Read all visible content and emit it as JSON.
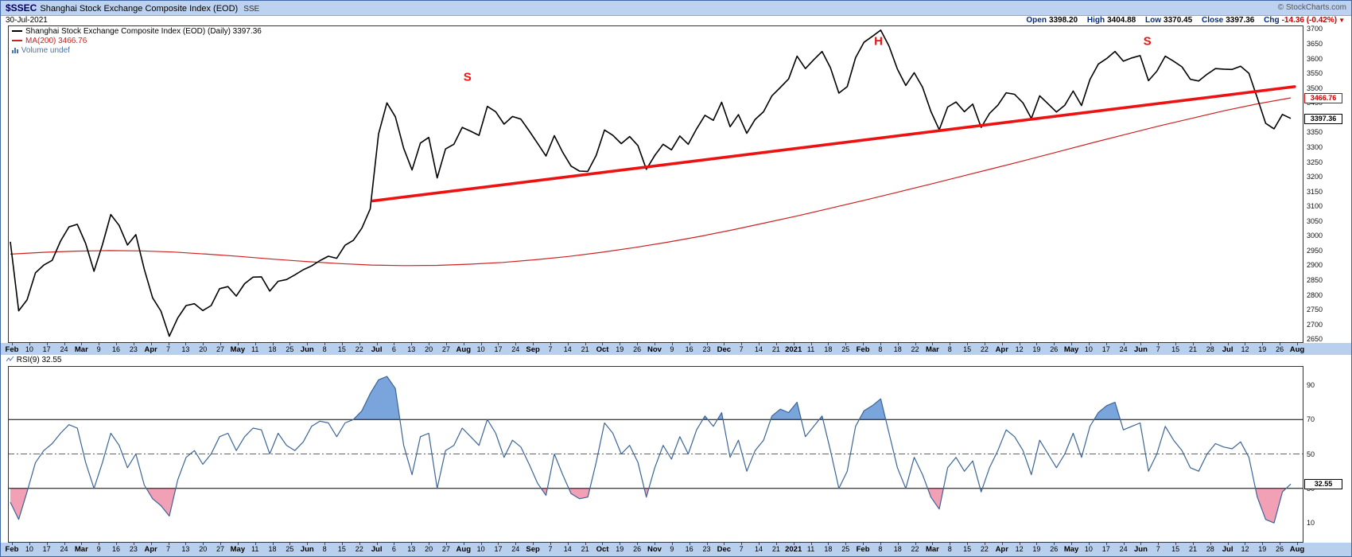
{
  "header": {
    "symbol": "$SSEC",
    "title": "Shanghai Stock Exchange Composite Index (EOD)",
    "exchange": "SSE",
    "copyright": "© StockCharts.com",
    "date": "30-Jul-2021",
    "quote": {
      "items": [
        {
          "label": "Open",
          "value": "3398.20"
        },
        {
          "label": "High",
          "value": "3404.88"
        },
        {
          "label": "Low",
          "value": "3370.45"
        },
        {
          "label": "Close",
          "value": "3397.36"
        },
        {
          "label": "Chg",
          "value": "-14.36 (-0.42%)"
        }
      ],
      "down_arrow": "▼"
    }
  },
  "legend": {
    "index_line": "Shanghai Stock Exchange Composite Index (EOD) (Daily) 3397.36",
    "ma_line": "MA(200) 3466.76",
    "volume": "Volume undef"
  },
  "rsi_legend": {
    "label": "RSI(9) 32.55"
  },
  "colors": {
    "header_bg": "#bdd2f0",
    "strip_bg": "#b9cfee",
    "price_line": "#000000",
    "ma_line": "#cc2222",
    "trendline": "#ee1111",
    "rsi_line": "#3b6596",
    "rsi_fill_high": "#7aa5dc",
    "rsi_fill_low": "#f2a0b5",
    "tag_red": "#cc0000",
    "annotation_red": "#ee1111",
    "negative": "#cc0000"
  },
  "chart_data": [
    {
      "type": "line",
      "panel": "price",
      "title": "Shanghai Stock Exchange Composite Index (EOD) (Daily)",
      "last_value": 3397.36,
      "ylim": [
        2650,
        3700
      ],
      "y_ticks": [
        3700,
        3650,
        3600,
        3550,
        3500,
        3450,
        3400,
        3350,
        3300,
        3250,
        3200,
        3150,
        3100,
        3050,
        3000,
        2950,
        2900,
        2850,
        2800,
        2750,
        2700,
        2650
      ],
      "x_range": [
        "Feb-2020",
        "Aug-2021"
      ],
      "series": [
        {
          "name": "SSEC Close",
          "color": "#000000",
          "values": [
            2980,
            2746,
            2783,
            2875,
            2901,
            2917,
            2982,
            3030,
            3039,
            2974,
            2880,
            2970,
            3072,
            3035,
            2969,
            3004,
            2887,
            2790,
            2745,
            2660,
            2722,
            2764,
            2770,
            2747,
            2764,
            2821,
            2828,
            2796,
            2838,
            2860,
            2861,
            2813,
            2846,
            2852,
            2868,
            2885,
            2898,
            2916,
            2931,
            2924,
            2968,
            2985,
            3026,
            3091,
            3345,
            3450,
            3403,
            3296,
            3223,
            3314,
            3333,
            3196,
            3294,
            3310,
            3367,
            3354,
            3340,
            3438,
            3420,
            3378,
            3404,
            3395,
            3355,
            3313,
            3270,
            3339,
            3283,
            3236,
            3219,
            3218,
            3272,
            3358,
            3340,
            3312,
            3336,
            3305,
            3225,
            3272,
            3310,
            3291,
            3338,
            3310,
            3362,
            3408,
            3391,
            3452,
            3369,
            3410,
            3347,
            3394,
            3420,
            3474,
            3502,
            3531,
            3608,
            3566,
            3596,
            3624,
            3569,
            3483,
            3505,
            3603,
            3655,
            3675,
            3696,
            3642,
            3564,
            3509,
            3552,
            3503,
            3421,
            3359,
            3436,
            3453,
            3420,
            3446,
            3367,
            3414,
            3442,
            3484,
            3479,
            3450,
            3397,
            3474,
            3447,
            3419,
            3442,
            3490,
            3441,
            3529,
            3581,
            3600,
            3624,
            3591,
            3602,
            3610,
            3525,
            3557,
            3608,
            3591,
            3572,
            3530,
            3524,
            3547,
            3566,
            3564,
            3563,
            3574,
            3550,
            3467,
            3381,
            3362,
            3411,
            3397.36
          ]
        },
        {
          "name": "MA(200)",
          "color": "#cc2222",
          "last_value": 3466.76,
          "values": [
            2938,
            2944,
            2948,
            2950,
            2949,
            2945,
            2938,
            2930,
            2921,
            2913,
            2906,
            2901,
            2899,
            2900,
            2904,
            2910,
            2919,
            2930,
            2944,
            2960,
            2978,
            2998,
            3020,
            3044,
            3068,
            3094,
            3120,
            3147,
            3174,
            3202,
            3230,
            3258,
            3287,
            3316,
            3344,
            3372,
            3398,
            3424,
            3447,
            3466.76
          ]
        }
      ],
      "trendline": {
        "x1": 0.283,
        "value1": 3118,
        "x2": 1.003,
        "value2": 3505
      },
      "annotations": [
        {
          "text": "S",
          "x": 0.357,
          "value": 3535
        },
        {
          "text": "H",
          "x": 0.678,
          "value": 3655
        },
        {
          "text": "S",
          "x": 0.888,
          "value": 3655
        }
      ],
      "tags": [
        {
          "text": "3466.76",
          "value": 3466.76,
          "style": "red"
        },
        {
          "text": "3397.36",
          "value": 3397.36,
          "style": "dark"
        }
      ],
      "x_tokens": [
        "Feb",
        "10",
        "17",
        "24",
        "Mar",
        "9",
        "16",
        "23",
        "Apr",
        "7",
        "13",
        "20",
        "27",
        "May",
        "11",
        "18",
        "25",
        "Jun",
        "8",
        "15",
        "22",
        "Jul",
        "6",
        "13",
        "20",
        "27",
        "Aug",
        "10",
        "17",
        "24",
        "Sep",
        "7",
        "14",
        "21",
        "Oct",
        "19",
        "26",
        "Nov",
        "9",
        "16",
        "23",
        "Dec",
        "7",
        "14",
        "21",
        "2021",
        "11",
        "18",
        "25",
        "Feb",
        "8",
        "18",
        "22",
        "Mar",
        "8",
        "15",
        "22",
        "Apr",
        "12",
        "19",
        "26",
        "May",
        "10",
        "17",
        "24",
        "Jun",
        "7",
        "15",
        "21",
        "28",
        "Jul",
        "12",
        "19",
        "26",
        "Aug"
      ]
    },
    {
      "type": "line",
      "panel": "rsi",
      "title": "RSI(9)",
      "last_value": 32.55,
      "ylim": [
        0,
        100
      ],
      "y_ticks": [
        90,
        70,
        50,
        30,
        10
      ],
      "ref_lines": [
        {
          "value": 70,
          "style": "solid"
        },
        {
          "value": 50,
          "style": "dashdot"
        },
        {
          "value": 30,
          "style": "solid"
        }
      ],
      "fill_above": 70,
      "fill_below": 30,
      "series": [
        {
          "name": "RSI(9)",
          "color": "#3b6596",
          "values": [
            22,
            12,
            28,
            45,
            52,
            56,
            62,
            67,
            65,
            45,
            30,
            45,
            62,
            55,
            42,
            50,
            32,
            24,
            20,
            14,
            35,
            48,
            52,
            44,
            50,
            60,
            62,
            52,
            60,
            65,
            64,
            50,
            62,
            55,
            52,
            57,
            66,
            69,
            68,
            60,
            68,
            70,
            75,
            85,
            93,
            95,
            88,
            55,
            38,
            60,
            62,
            30,
            52,
            55,
            65,
            60,
            55,
            70,
            62,
            48,
            58,
            54,
            44,
            33,
            26,
            50,
            38,
            27,
            24,
            25,
            45,
            68,
            62,
            50,
            55,
            45,
            25,
            42,
            55,
            47,
            60,
            50,
            64,
            72,
            66,
            74,
            48,
            58,
            40,
            52,
            58,
            72,
            76,
            74,
            80,
            60,
            66,
            72,
            52,
            30,
            40,
            66,
            75,
            78,
            82,
            62,
            42,
            30,
            48,
            38,
            25,
            18,
            42,
            48,
            40,
            46,
            28,
            42,
            52,
            64,
            60,
            52,
            38,
            58,
            50,
            42,
            50,
            62,
            48,
            66,
            74,
            78,
            80,
            64,
            66,
            68,
            40,
            50,
            66,
            58,
            52,
            42,
            40,
            50,
            56,
            54,
            53,
            57,
            48,
            25,
            12,
            10,
            28,
            32.55
          ]
        }
      ],
      "tags": [
        {
          "text": "32.55",
          "value": 32.55,
          "style": "dark"
        }
      ]
    }
  ]
}
